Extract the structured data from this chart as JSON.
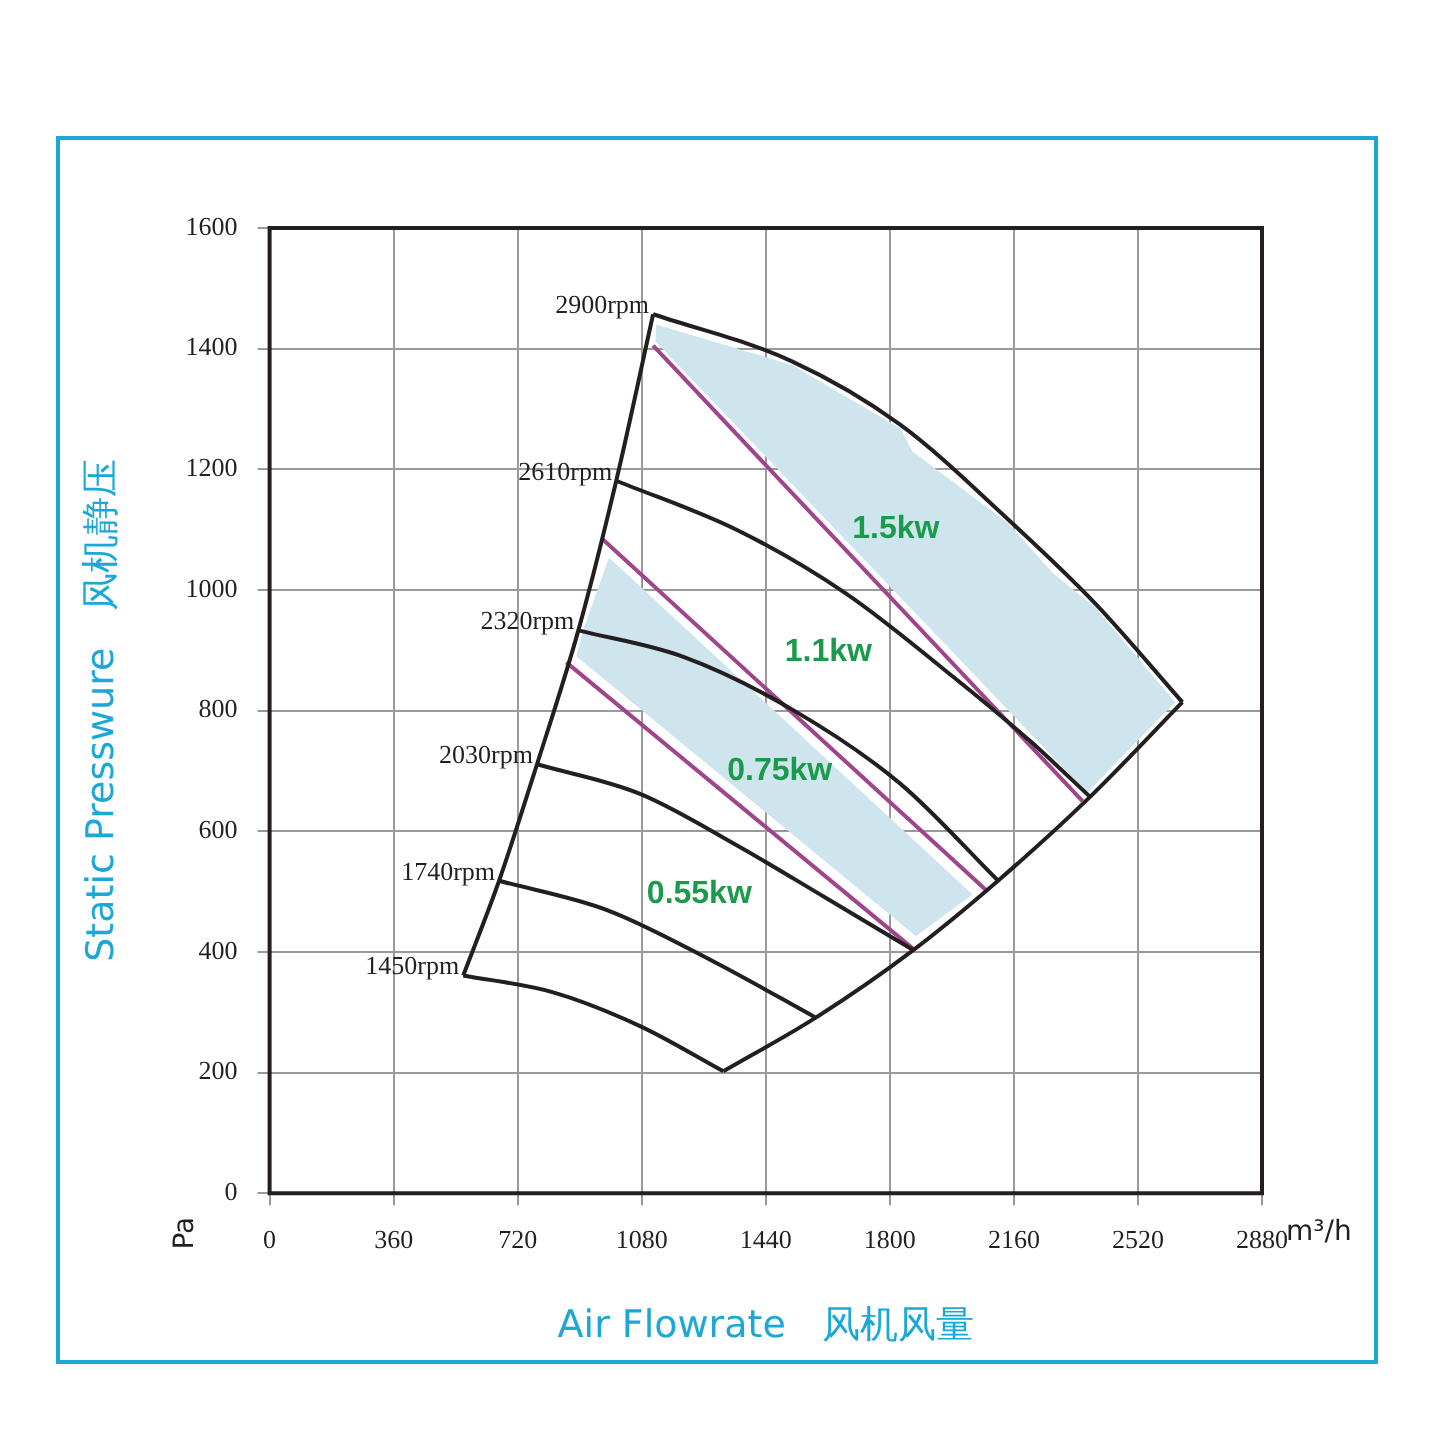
{
  "chart_data": {
    "type": "line",
    "xlabel": "Air Flowrate   风机风量",
    "ylabel": "Static Presswure   风机静压",
    "xlim": [
      0,
      2880
    ],
    "xticks": [
      0,
      360,
      720,
      1080,
      1440,
      1800,
      2160,
      2520,
      2880
    ],
    "ylim": [
      0,
      1600
    ],
    "yticks": [
      0,
      200,
      400,
      600,
      800,
      1000,
      1200,
      1400,
      1600
    ],
    "grid": true,
    "legend": false,
    "series": [
      {
        "name": "1450rpm",
        "color": "#231f20",
        "x": [
          562,
          823,
          1075,
          1317
        ],
        "values": [
          361,
          333,
          277,
          202
        ]
      },
      {
        "name": "1740rpm",
        "color": "#231f20",
        "x": [
          666,
          981,
          1295,
          1585
        ],
        "values": [
          518,
          469,
          382,
          291
        ]
      },
      {
        "name": "2030rpm",
        "color": "#231f20",
        "x": [
          776,
          1075,
          1358,
          1610,
          1868
        ],
        "values": [
          711,
          662,
          576,
          491,
          403
        ]
      },
      {
        "name": "2320rpm",
        "color": "#231f20",
        "x": [
          896,
          1201,
          1516,
          1830,
          2114
        ],
        "values": [
          933,
          889,
          802,
          679,
          518
        ]
      },
      {
        "name": "2610rpm",
        "color": "#231f20",
        "x": [
          1006,
          1358,
          1673,
          1988,
          2208,
          2381
        ],
        "values": [
          1181,
          1099,
          994,
          854,
          749,
          657
        ]
      },
      {
        "name": "2900rpm",
        "color": "#231f20",
        "x": [
          1113,
          1516,
          1830,
          2145,
          2397,
          2649
        ],
        "values": [
          1457,
          1379,
          1274,
          1116,
          977,
          814
        ]
      },
      {
        "color": "#231f20",
        "x": [
          562,
          666,
          776,
          896,
          1006,
          1113
        ],
        "values": [
          361,
          518,
          711,
          933,
          1181,
          1457
        ]
      },
      {
        "color": "#231f20",
        "x": [
          1317,
          1585,
          1868,
          2114,
          2381,
          2649
        ],
        "values": [
          202,
          291,
          403,
          518,
          657,
          814
        ]
      },
      {
        "color": "#a0448c",
        "x": [
          1113,
          2359
        ],
        "values": [
          1405,
          650
        ]
      },
      {
        "color": "#a0448c",
        "x": [
          965,
          2082
        ],
        "values": [
          1085,
          501
        ]
      },
      {
        "color": "#a0448c",
        "x": [
          861,
          1868
        ],
        "values": [
          880,
          405
        ]
      },
      {
        "type": "area",
        "color": "#cfe5ee",
        "x": [
          1122,
          1358,
          1516,
          1830,
          1865,
          2145,
          2275,
          2397,
          2628,
          2372,
          1120
        ],
        "values": [
          1440,
          1400,
          1373,
          1268,
          1230,
          1110,
          1027,
          971,
          814,
          664,
          1412
        ]
      },
      {
        "type": "area",
        "color": "#cfe5ee",
        "x": [
          985,
          2040,
          1876,
          890,
          910
        ],
        "values": [
          1054,
          495,
          426,
          890,
          933
        ]
      }
    ],
    "annotations": [
      "Pa",
      "m³/h",
      "1.5kw",
      "1.1kw",
      "0.75kw",
      "0.55kw"
    ]
  }
}
